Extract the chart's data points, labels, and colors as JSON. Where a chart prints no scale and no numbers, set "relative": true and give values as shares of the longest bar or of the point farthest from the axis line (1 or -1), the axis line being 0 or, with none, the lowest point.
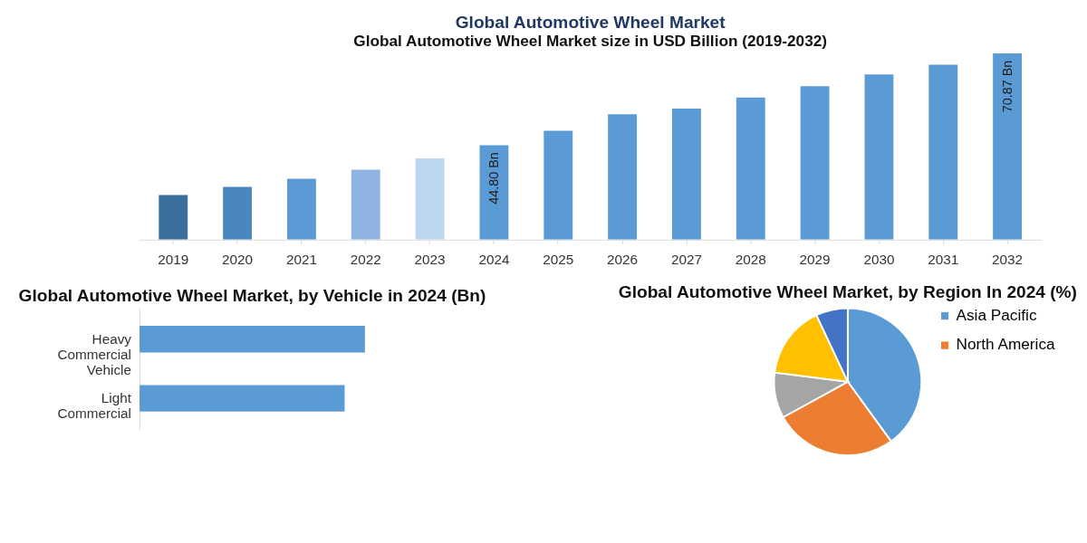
{
  "chart_data": [
    {
      "type": "bar",
      "title": "Global Automotive Wheel Market",
      "subtitle": "Global Automotive Wheel Market size in USD Billion (2019-2032)",
      "categories": [
        "2019",
        "2020",
        "2021",
        "2022",
        "2023",
        "2024",
        "2025",
        "2026",
        "2027",
        "2028",
        "2029",
        "2030",
        "2031",
        "2032"
      ],
      "values": [
        30.7,
        33.0,
        35.3,
        37.9,
        41.1,
        44.8,
        48.9,
        53.6,
        55.2,
        58.4,
        61.6,
        64.9,
        67.7,
        70.87
      ],
      "colors": [
        "#3d6f9c",
        "#4a86bf",
        "#5b9bd5",
        "#8fb4e3",
        "#bdd7ee",
        "#5b9bd5",
        "#5b9bd5",
        "#5b9bd5",
        "#5b9bd5",
        "#5b9bd5",
        "#5b9bd5",
        "#5b9bd5",
        "#5b9bd5",
        "#5b9bd5"
      ],
      "value_labels": [
        null,
        null,
        null,
        null,
        null,
        "44.80 Bn",
        null,
        null,
        null,
        null,
        null,
        null,
        null,
        "70.87 Bn"
      ],
      "ylim": [
        18,
        70.87
      ],
      "tick_labels": "x"
    },
    {
      "type": "bar",
      "orientation": "horizontal",
      "relative": true,
      "title": "Global Automotive Wheel Market, by Vehicle in 2024 (Bn)",
      "categories": [
        "Heavy Commercial Vehicle",
        "Light Commercial"
      ],
      "values": [
        1,
        0.91
      ],
      "color": "#5b9bd5"
    },
    {
      "type": "pie",
      "title": "Global Automotive Wheel Market, by Region In 2024 (%)",
      "categories": [
        "Asia Pacific",
        "North America",
        null,
        null,
        null
      ],
      "values": [
        40,
        27,
        10,
        16,
        7
      ],
      "colors": [
        "#5b9bd5",
        "#ed7d31",
        "#a5a5a5",
        "#ffc000",
        "#4472c4"
      ],
      "legend": "right"
    }
  ]
}
